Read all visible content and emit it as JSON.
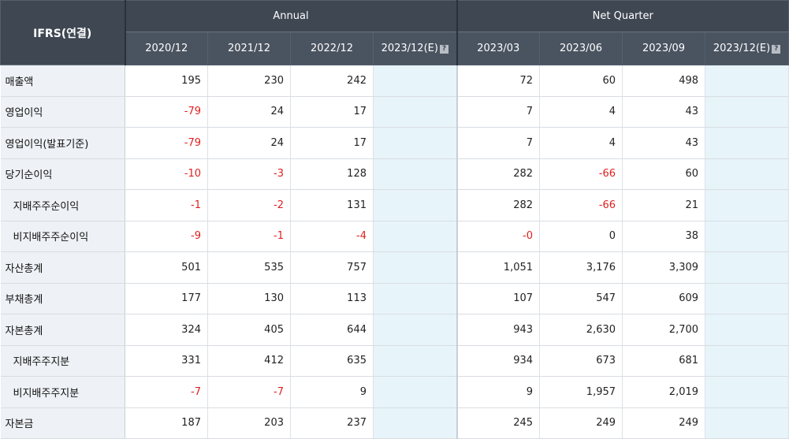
{
  "header": {
    "title": "IFRS(연결)",
    "annual_label": "Annual",
    "quarter_label": "Net Quarter",
    "annual_periods": [
      "2020/12",
      "2021/12",
      "2022/12",
      "2023/12(E)"
    ],
    "quarter_periods": [
      "2023/03",
      "2023/06",
      "2023/09",
      "2023/12(E)"
    ],
    "estimate_icon": "info-icon"
  },
  "colors": {
    "header_bg": "#3f4753",
    "label_bg": "#eef1f5",
    "estimate_bg": "#e7f4fa",
    "negative": "#e02020"
  },
  "rows": [
    {
      "label": "매출액",
      "sub": false,
      "annual": [
        "195",
        "230",
        "242",
        ""
      ],
      "quarter": [
        "72",
        "60",
        "498",
        ""
      ]
    },
    {
      "label": "영업이익",
      "sub": false,
      "annual": [
        "-79",
        "24",
        "17",
        ""
      ],
      "quarter": [
        "7",
        "4",
        "43",
        ""
      ]
    },
    {
      "label": "영업이익(발표기준)",
      "sub": false,
      "annual": [
        "-79",
        "24",
        "17",
        ""
      ],
      "quarter": [
        "7",
        "4",
        "43",
        ""
      ]
    },
    {
      "label": "당기순이익",
      "sub": false,
      "annual": [
        "-10",
        "-3",
        "128",
        ""
      ],
      "quarter": [
        "282",
        "-66",
        "60",
        ""
      ]
    },
    {
      "label": "지배주주순이익",
      "sub": true,
      "annual": [
        "-1",
        "-2",
        "131",
        ""
      ],
      "quarter": [
        "282",
        "-66",
        "21",
        ""
      ]
    },
    {
      "label": "비지배주주순이익",
      "sub": true,
      "annual": [
        "-9",
        "-1",
        "-4",
        ""
      ],
      "quarter": [
        "-0",
        "0",
        "38",
        ""
      ]
    },
    {
      "label": "자산총계",
      "sub": false,
      "annual": [
        "501",
        "535",
        "757",
        ""
      ],
      "quarter": [
        "1,051",
        "3,176",
        "3,309",
        ""
      ]
    },
    {
      "label": "부채총계",
      "sub": false,
      "annual": [
        "177",
        "130",
        "113",
        ""
      ],
      "quarter": [
        "107",
        "547",
        "609",
        ""
      ]
    },
    {
      "label": "자본총계",
      "sub": false,
      "annual": [
        "324",
        "405",
        "644",
        ""
      ],
      "quarter": [
        "943",
        "2,630",
        "2,700",
        ""
      ]
    },
    {
      "label": "지배주주지분",
      "sub": true,
      "annual": [
        "331",
        "412",
        "635",
        ""
      ],
      "quarter": [
        "934",
        "673",
        "681",
        ""
      ]
    },
    {
      "label": "비지배주주지분",
      "sub": true,
      "annual": [
        "-7",
        "-7",
        "9",
        ""
      ],
      "quarter": [
        "9",
        "1,957",
        "2,019",
        ""
      ]
    },
    {
      "label": "자본금",
      "sub": false,
      "annual": [
        "187",
        "203",
        "237",
        ""
      ],
      "quarter": [
        "245",
        "249",
        "249",
        ""
      ]
    }
  ]
}
